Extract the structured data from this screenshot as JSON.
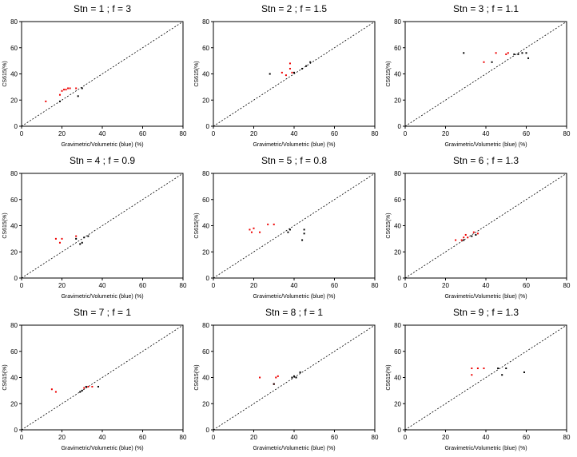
{
  "chart_data": {
    "type": "scatter",
    "xlabel": "Gravimetric/Volumetric (blue) (%)",
    "ylabel": "CS615(%)",
    "xlim": [
      0,
      80
    ],
    "ylim": [
      0,
      80
    ],
    "xticks": [
      "0",
      "20",
      "40",
      "60",
      "80"
    ],
    "yticks": [
      "0",
      "20",
      "40",
      "60",
      "80"
    ],
    "reference_line": "y = x (dotted)",
    "series_colors": {
      "red": "#ee0000",
      "black": "#000000"
    },
    "panels": [
      {
        "title": "Stn = 1 ; f = 3",
        "red": [
          [
            12,
            19
          ],
          [
            19,
            24
          ],
          [
            20,
            27
          ],
          [
            21,
            28
          ],
          [
            22,
            28
          ],
          [
            23,
            29
          ],
          [
            24,
            29
          ],
          [
            27,
            29
          ]
        ],
        "black": [
          [
            19,
            19
          ],
          [
            28,
            23
          ],
          [
            30,
            29
          ]
        ]
      },
      {
        "title": "Stn = 2 ; f = 1.5",
        "red": [
          [
            34,
            41
          ],
          [
            36,
            39
          ],
          [
            38,
            44
          ],
          [
            38,
            48
          ],
          [
            39,
            41
          ]
        ],
        "black": [
          [
            28,
            40
          ],
          [
            40,
            41
          ],
          [
            44,
            44
          ],
          [
            46,
            46
          ],
          [
            48,
            49
          ]
        ]
      },
      {
        "title": "Stn = 3 ; f = 1.1",
        "red": [
          [
            39,
            49
          ],
          [
            45,
            56
          ],
          [
            50,
            55
          ],
          [
            51,
            56
          ]
        ],
        "black": [
          [
            29,
            56
          ],
          [
            43,
            49
          ],
          [
            54,
            55
          ],
          [
            56,
            55
          ],
          [
            58,
            56
          ],
          [
            60,
            56
          ],
          [
            61,
            52
          ]
        ]
      },
      {
        "title": "Stn = 4 ; f = 0.9",
        "red": [
          [
            17,
            30
          ],
          [
            20,
            30
          ],
          [
            19,
            27
          ],
          [
            27,
            32
          ]
        ],
        "black": [
          [
            27,
            30
          ],
          [
            29,
            26
          ],
          [
            30,
            27
          ],
          [
            31,
            31
          ],
          [
            33,
            32
          ]
        ]
      },
      {
        "title": "Stn = 5 ; f = 0.8",
        "red": [
          [
            18,
            37
          ],
          [
            19,
            35
          ],
          [
            20,
            38
          ],
          [
            23,
            35
          ],
          [
            27,
            41
          ],
          [
            30,
            41
          ]
        ],
        "black": [
          [
            37,
            35
          ],
          [
            38,
            37
          ],
          [
            44,
            29
          ],
          [
            45,
            34
          ],
          [
            45,
            37
          ]
        ]
      },
      {
        "title": "Stn = 6 ; f = 1.3",
        "red": [
          [
            25,
            29
          ],
          [
            28,
            29
          ],
          [
            29,
            31
          ],
          [
            30,
            33
          ],
          [
            31,
            31
          ],
          [
            34,
            35
          ],
          [
            36,
            34
          ]
        ],
        "black": [
          [
            29,
            29
          ],
          [
            33,
            32
          ],
          [
            35,
            33
          ]
        ]
      },
      {
        "title": "Stn = 7 ; f = 1",
        "red": [
          [
            15,
            31
          ],
          [
            17,
            29
          ],
          [
            31,
            32
          ],
          [
            33,
            33
          ],
          [
            35,
            33
          ]
        ],
        "black": [
          [
            29,
            29
          ],
          [
            30,
            30
          ],
          [
            32,
            33
          ],
          [
            38,
            33
          ]
        ]
      },
      {
        "title": "Stn = 8 ; f = 1",
        "red": [
          [
            23,
            40
          ],
          [
            30,
            35
          ],
          [
            31,
            40
          ],
          [
            32,
            41
          ]
        ],
        "black": [
          [
            30,
            35
          ],
          [
            39,
            40
          ],
          [
            40,
            41
          ],
          [
            41,
            40
          ],
          [
            43,
            44
          ]
        ]
      },
      {
        "title": "Stn = 9 ; f = 1.3",
        "red": [
          [
            33,
            42
          ],
          [
            33,
            47
          ],
          [
            36,
            47
          ],
          [
            39,
            47
          ]
        ],
        "black": [
          [
            46,
            47
          ],
          [
            48,
            42
          ],
          [
            50,
            47
          ],
          [
            59,
            44
          ]
        ]
      }
    ]
  }
}
